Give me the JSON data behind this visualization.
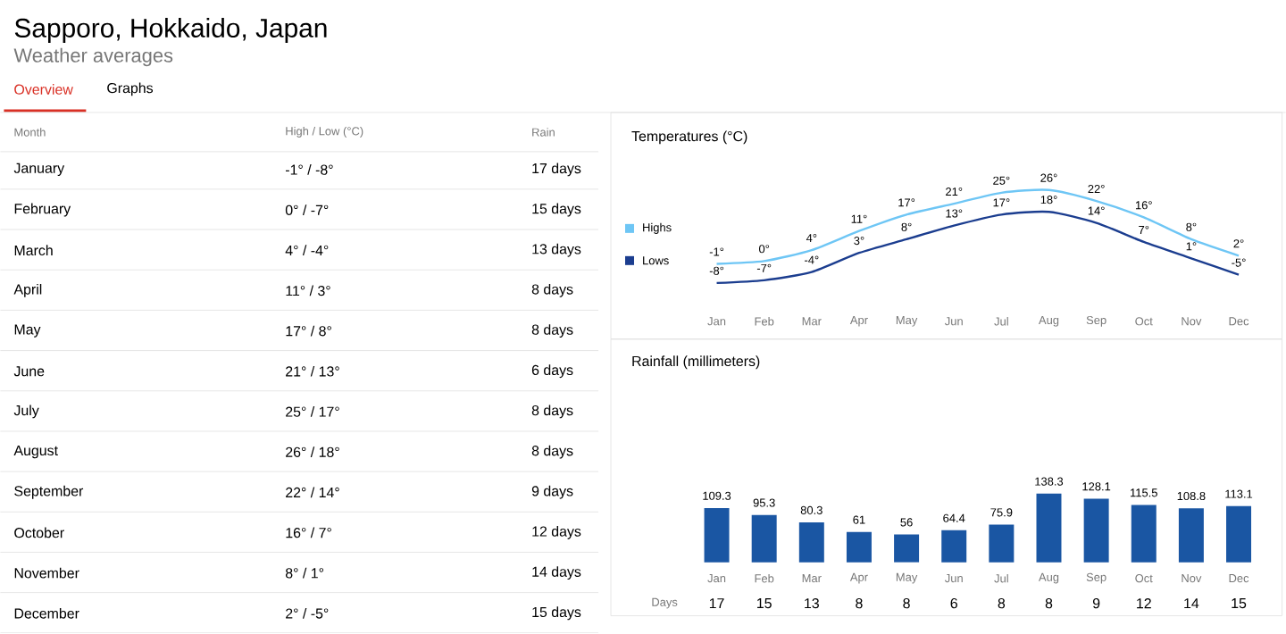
{
  "chart_data": [
    {
      "type": "other",
      "title": "Sapporo, Hokkaido, Japan",
      "subtitle": "Weather averages",
      "annotations": [
        "Overview",
        "Graphs",
        "Month",
        "High / Low (°C)",
        "Rain",
        "January",
        "-1° / -8°",
        "17 days",
        "February",
        "0° / -7°",
        "15 days",
        "March",
        "4° / -4°",
        "13 days",
        "April",
        "11° / 3°",
        "8 days",
        "May",
        "17° / 8°",
        "8 days",
        "June",
        "21° / 13°",
        "6 days",
        "July",
        "25° / 17°",
        "8 days",
        "August",
        "26° / 18°",
        "8 days",
        "September",
        "22° / 14°",
        "9 days",
        "October",
        "16° / 7°",
        "12 days",
        "November",
        "8° / 1°",
        "14 days",
        "December",
        "2° / -5°",
        "15 days"
      ]
    },
    {
      "type": "line",
      "title": "Temperatures (°C)",
      "categories": [
        "Jan",
        "Feb",
        "Mar",
        "Apr",
        "May",
        "Jun",
        "Jul",
        "Aug",
        "Sep",
        "Oct",
        "Nov",
        "Dec"
      ],
      "legend": "left",
      "marker": "none",
      "line_style": "solid",
      "series": [
        {
          "name": "Highs",
          "color": "#6ec6f5",
          "values": [
            -1,
            0,
            4,
            11,
            17,
            21,
            25,
            26,
            22,
            16,
            8,
            2
          ],
          "value_labels": [
            "-1°",
            "0°",
            "4°",
            "11°",
            "17°",
            "21°",
            "25°",
            "26°",
            "22°",
            "16°",
            "8°",
            "2°"
          ]
        },
        {
          "name": "Lows",
          "color": "#1b3d8f",
          "values": [
            -8,
            -7,
            -4,
            3,
            8,
            13,
            17,
            18,
            14,
            7,
            1,
            -5
          ],
          "value_labels": [
            "-8°",
            "-7°",
            "-4°",
            "3°",
            "8°",
            "13°",
            "17°",
            "18°",
            "14°",
            "7°",
            "1°",
            "-5°"
          ]
        }
      ]
    },
    {
      "type": "bar",
      "title": "Rainfall (millimeters)",
      "categories": [
        "Jan",
        "Feb",
        "Mar",
        "Apr",
        "May",
        "Jun",
        "Jul",
        "Aug",
        "Sep",
        "Oct",
        "Nov",
        "Dec"
      ],
      "color": "#1a56a3",
      "data_labels": true,
      "values": [
        109.3,
        95.3,
        80.3,
        61,
        56,
        64.4,
        75.9,
        138.3,
        128.1,
        115.5,
        108.8,
        113.1
      ],
      "annotations": [
        "Days",
        "17",
        "15",
        "13",
        "8",
        "8",
        "6",
        "8",
        "8",
        "9",
        "12",
        "14",
        "15"
      ]
    }
  ]
}
